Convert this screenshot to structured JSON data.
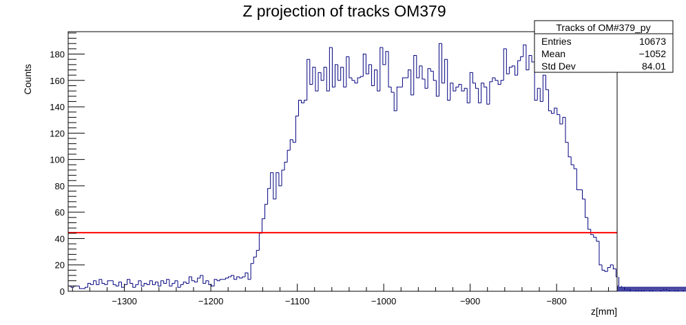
{
  "chart_data": {
    "type": "histogram",
    "title": "Z projection of tracks OM379",
    "xlabel": "z[mm]",
    "ylabel": "Counts",
    "xlim": [
      -1365,
      -730
    ],
    "ylim": [
      0,
      197
    ],
    "bin_width": 3.25,
    "xticks": [
      -1300,
      -1200,
      -1100,
      -1000,
      -900,
      -800
    ],
    "xtick_labels": [
      "−1300",
      "−1200",
      "−1100",
      "−1000",
      "−900",
      "−800"
    ],
    "yticks": [
      0,
      20,
      40,
      60,
      80,
      100,
      120,
      140,
      160,
      180
    ],
    "yticks_labels": [
      "0",
      "20",
      "40",
      "60",
      "80",
      "100",
      "120",
      "140",
      "160",
      "180"
    ],
    "line_color": "#00007f",
    "threshold": {
      "value": 44.5,
      "color": "#ff0000"
    },
    "values": [
      4,
      3,
      4,
      4,
      2,
      2,
      3,
      6,
      5,
      8,
      5,
      9,
      6,
      5,
      8,
      8,
      5,
      4,
      7,
      3,
      5,
      9,
      6,
      3,
      5,
      8,
      4,
      6,
      5,
      8,
      5,
      7,
      4,
      8,
      6,
      9,
      4,
      6,
      8,
      3,
      5,
      7,
      6,
      11,
      8,
      7,
      10,
      12,
      6,
      8,
      5,
      4,
      9,
      8,
      9,
      9,
      10,
      11,
      12,
      9,
      11,
      10,
      11,
      14,
      9,
      21,
      26,
      31,
      44,
      55,
      66,
      78,
      90,
      70,
      90,
      80,
      92,
      98,
      107,
      115,
      113,
      133,
      145,
      143,
      145,
      176,
      157,
      170,
      152,
      166,
      160,
      170,
      152,
      185,
      155,
      172,
      160,
      170,
      155,
      178,
      162,
      160,
      158,
      162,
      163,
      180,
      165,
      172,
      156,
      168,
      152,
      185,
      172,
      182,
      155,
      151,
      137,
      155,
      155,
      162,
      162,
      168,
      149,
      179,
      162,
      171,
      161,
      154,
      169,
      167,
      160,
      148,
      188,
      158,
      176,
      145,
      158,
      152,
      155,
      157,
      152,
      154,
      143,
      166,
      158,
      154,
      143,
      158,
      155,
      142,
      159,
      162,
      160,
      157,
      160,
      184,
      165,
      170,
      171,
      164,
      175,
      178,
      187,
      168,
      179,
      174,
      145,
      154,
      144,
      164,
      153,
      137,
      135,
      139,
      134,
      127,
      132,
      113,
      102,
      96,
      93,
      77,
      77,
      70,
      56,
      47,
      43,
      41,
      38,
      20,
      16,
      15,
      18,
      20,
      17,
      11,
      4,
      3,
      1,
      2,
      0,
      0,
      1,
      0,
      1,
      0,
      0,
      1,
      0,
      0,
      0,
      1,
      2,
      1,
      0,
      0,
      1,
      0,
      0,
      1,
      2,
      1,
      0,
      0,
      2,
      1,
      0,
      0,
      0,
      1,
      0,
      1,
      0,
      0,
      2,
      1,
      0,
      0,
      2,
      1,
      0,
      0,
      2,
      3,
      0,
      1,
      0,
      0,
      0,
      2,
      0,
      3,
      0,
      0,
      1,
      0,
      0,
      2
    ]
  },
  "stats": {
    "title": "Tracks of OM#379_py",
    "rows": [
      {
        "label": "Entries",
        "value": "10673"
      },
      {
        "label": "Mean",
        "value": "−1052"
      },
      {
        "label": "Std Dev",
        "value": "84.01"
      }
    ]
  }
}
